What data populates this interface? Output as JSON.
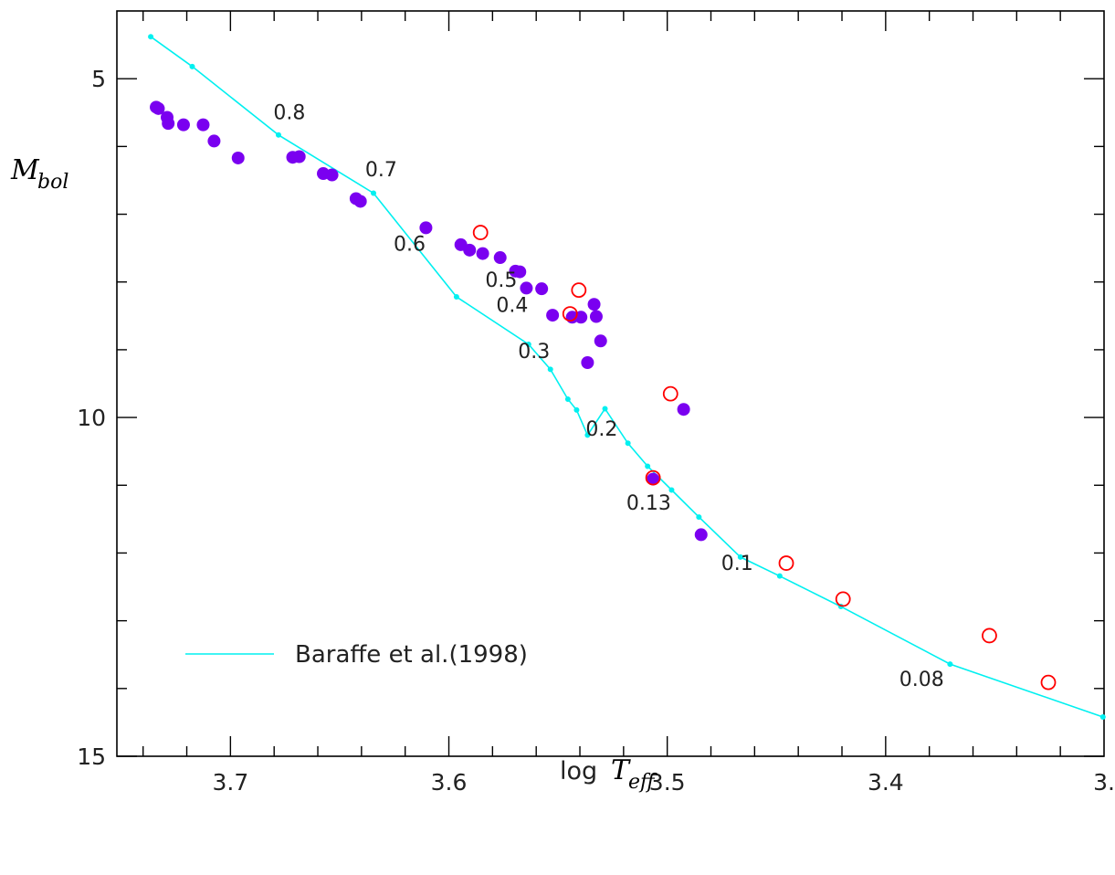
{
  "chart_data": {
    "type": "scatter",
    "x_axis": {
      "label_prefix": "log",
      "label_var": "T",
      "label_sub": "eff",
      "lim": [
        3.752,
        3.3
      ],
      "reversed": true,
      "tick_labels": [
        {
          "value": 3.7,
          "text": "3.7"
        },
        {
          "value": 3.6,
          "text": "3.6"
        },
        {
          "value": 3.5,
          "text": "3.5"
        },
        {
          "value": 3.4,
          "text": "3.4"
        },
        {
          "value": 3.3,
          "text": "3."
        }
      ],
      "minor_ticks": [
        3.74,
        3.72,
        3.7,
        3.68,
        3.66,
        3.64,
        3.62,
        3.6,
        3.58,
        3.56,
        3.54,
        3.52,
        3.5,
        3.48,
        3.46,
        3.44,
        3.42,
        3.4,
        3.38,
        3.36,
        3.34,
        3.32
      ]
    },
    "y_axis": {
      "label_var": "M",
      "label_sub": "bol",
      "lim": [
        4.0,
        15.0
      ],
      "reversed": true,
      "tick_labels": [
        {
          "value": 5,
          "text": "5"
        },
        {
          "value": 10,
          "text": "10"
        },
        {
          "value": 15,
          "text": "15"
        }
      ],
      "minor_ticks": [
        5,
        6,
        7,
        8,
        9,
        10,
        11,
        12,
        13,
        14,
        15
      ]
    },
    "series": [
      {
        "name": "Baraffe et al.(1998)",
        "kind": "model-line",
        "color": "#00f0f0",
        "points": [
          [
            3.7365,
            4.38
          ],
          [
            3.7175,
            4.82
          ],
          [
            3.678,
            5.83
          ],
          [
            3.6345,
            6.69
          ],
          [
            3.5965,
            8.22
          ],
          [
            3.5635,
            8.92
          ],
          [
            3.5535,
            9.29
          ],
          [
            3.5455,
            9.73
          ],
          [
            3.5415,
            9.89
          ],
          [
            3.5365,
            10.26
          ],
          [
            3.5285,
            9.87
          ],
          [
            3.518,
            10.38
          ],
          [
            3.509,
            10.72
          ],
          [
            3.498,
            11.07
          ],
          [
            3.4855,
            11.47
          ],
          [
            3.4665,
            12.06
          ],
          [
            3.4485,
            12.34
          ],
          [
            3.4205,
            12.79
          ],
          [
            3.3705,
            13.64
          ],
          [
            3.3005,
            14.42
          ]
        ]
      },
      {
        "name": "filled",
        "kind": "filled-circle",
        "color": "#7a00f0",
        "points": [
          [
            3.734,
            5.42
          ],
          [
            3.733,
            5.44
          ],
          [
            3.729,
            5.57
          ],
          [
            3.7285,
            5.66
          ],
          [
            3.7215,
            5.68
          ],
          [
            3.7125,
            5.68
          ],
          [
            3.7075,
            5.92
          ],
          [
            3.6965,
            6.17
          ],
          [
            3.6715,
            6.16
          ],
          [
            3.6685,
            6.15
          ],
          [
            3.6575,
            6.4
          ],
          [
            3.6535,
            6.42
          ],
          [
            3.6425,
            6.77
          ],
          [
            3.6405,
            6.81
          ],
          [
            3.6105,
            7.2
          ],
          [
            3.5945,
            7.45
          ],
          [
            3.5905,
            7.53
          ],
          [
            3.5845,
            7.58
          ],
          [
            3.5765,
            7.64
          ],
          [
            3.5695,
            7.84
          ],
          [
            3.5675,
            7.85
          ],
          [
            3.5645,
            8.09
          ],
          [
            3.5575,
            8.1
          ],
          [
            3.5525,
            8.49
          ],
          [
            3.5435,
            8.52
          ],
          [
            3.5395,
            8.52
          ],
          [
            3.5335,
            8.33
          ],
          [
            3.5325,
            8.51
          ],
          [
            3.5305,
            8.87
          ],
          [
            3.5365,
            9.19
          ],
          [
            3.4925,
            9.88
          ],
          [
            3.5065,
            10.91
          ],
          [
            3.4845,
            11.73
          ]
        ]
      },
      {
        "name": "open",
        "kind": "open-circle",
        "color": "#ff0000",
        "points": [
          [
            3.5855,
            7.27
          ],
          [
            3.5405,
            8.12
          ],
          [
            3.5445,
            8.47
          ],
          [
            3.4985,
            9.65
          ],
          [
            3.5065,
            10.89
          ],
          [
            3.4455,
            12.15
          ],
          [
            3.4195,
            12.68
          ],
          [
            3.3525,
            13.22
          ],
          [
            3.3255,
            13.91
          ]
        ]
      }
    ],
    "mass_labels": [
      {
        "text": "0.8",
        "x": 3.673,
        "y": 5.6
      },
      {
        "text": "0.7",
        "x": 3.631,
        "y": 6.44
      },
      {
        "text": "0.6",
        "x": 3.618,
        "y": 7.54
      },
      {
        "text": "0.5",
        "x": 3.576,
        "y": 8.07
      },
      {
        "text": "0.4",
        "x": 3.571,
        "y": 8.44
      },
      {
        "text": "0.3",
        "x": 3.561,
        "y": 9.12
      },
      {
        "text": "0.2",
        "x": 3.53,
        "y": 10.27
      },
      {
        "text": "0.13",
        "x": 3.5085,
        "y": 11.36
      },
      {
        "text": "0.1",
        "x": 3.468,
        "y": 12.25
      },
      {
        "text": "0.08",
        "x": 3.3835,
        "y": 13.96
      }
    ],
    "legend": {
      "label": "Baraffe et al.(1998)",
      "placement": "bottom-left"
    }
  }
}
